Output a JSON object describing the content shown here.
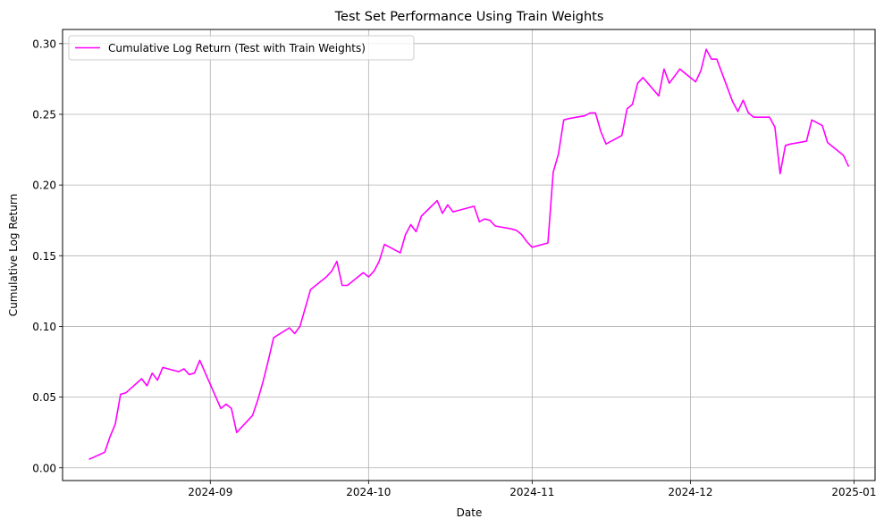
{
  "chart_data": {
    "type": "line",
    "title": "Test Set Performance Using Train Weights",
    "xlabel": "Date",
    "ylabel": "Cumulative Log Return",
    "xlim": [
      "2024-08-04",
      "2025-01-05"
    ],
    "ylim": [
      -0.009,
      0.31
    ],
    "x_ticks": [
      "2024-09-01",
      "2024-10-01",
      "2024-11-01",
      "2024-12-01",
      "2025-01-01"
    ],
    "x_tick_labels": [
      "2024-09",
      "2024-10",
      "2024-11",
      "2024-12",
      "2025-01"
    ],
    "y_ticks": [
      0.0,
      0.05,
      0.1,
      0.15,
      0.2,
      0.25,
      0.3
    ],
    "y_tick_labels": [
      "0.00",
      "0.05",
      "0.10",
      "0.15",
      "0.20",
      "0.25",
      "0.30"
    ],
    "grid": true,
    "legend_position": "top-left",
    "series": [
      {
        "name": "Cumulative Log Return (Test with Train Weights)",
        "color": "#ff00ff",
        "x": [
          "2024-08-09",
          "2024-08-12",
          "2024-08-13",
          "2024-08-14",
          "2024-08-15",
          "2024-08-16",
          "2024-08-19",
          "2024-08-20",
          "2024-08-21",
          "2024-08-22",
          "2024-08-23",
          "2024-08-26",
          "2024-08-27",
          "2024-08-28",
          "2024-08-29",
          "2024-08-30",
          "2024-09-03",
          "2024-09-04",
          "2024-09-05",
          "2024-09-06",
          "2024-09-09",
          "2024-09-10",
          "2024-09-11",
          "2024-09-12",
          "2024-09-13",
          "2024-09-16",
          "2024-09-17",
          "2024-09-18",
          "2024-09-19",
          "2024-09-20",
          "2024-09-23",
          "2024-09-24",
          "2024-09-25",
          "2024-09-26",
          "2024-09-27",
          "2024-09-30",
          "2024-10-01",
          "2024-10-02",
          "2024-10-03",
          "2024-10-04",
          "2024-10-07",
          "2024-10-08",
          "2024-10-09",
          "2024-10-10",
          "2024-10-11",
          "2024-10-14",
          "2024-10-15",
          "2024-10-16",
          "2024-10-17",
          "2024-10-18",
          "2024-10-21",
          "2024-10-22",
          "2024-10-23",
          "2024-10-24",
          "2024-10-25",
          "2024-10-28",
          "2024-10-29",
          "2024-10-30",
          "2024-10-31",
          "2024-11-01",
          "2024-11-04",
          "2024-11-05",
          "2024-11-06",
          "2024-11-07",
          "2024-11-08",
          "2024-11-11",
          "2024-11-12",
          "2024-11-13",
          "2024-11-14",
          "2024-11-15",
          "2024-11-18",
          "2024-11-19",
          "2024-11-20",
          "2024-11-21",
          "2024-11-22",
          "2024-11-25",
          "2024-11-26",
          "2024-11-27",
          "2024-11-29",
          "2024-12-02",
          "2024-12-03",
          "2024-12-04",
          "2024-12-05",
          "2024-12-06",
          "2024-12-09",
          "2024-12-10",
          "2024-12-11",
          "2024-12-12",
          "2024-12-13",
          "2024-12-16",
          "2024-12-17",
          "2024-12-18",
          "2024-12-19",
          "2024-12-20",
          "2024-12-23",
          "2024-12-24",
          "2024-12-26",
          "2024-12-27",
          "2024-12-30",
          "2024-12-31"
        ],
        "y": [
          0.006,
          0.011,
          0.022,
          0.031,
          0.052,
          0.053,
          0.063,
          0.058,
          0.067,
          0.062,
          0.071,
          0.068,
          0.07,
          0.066,
          0.067,
          0.076,
          0.042,
          0.045,
          0.042,
          0.025,
          0.037,
          0.048,
          0.061,
          0.076,
          0.092,
          0.099,
          0.095,
          0.1,
          0.113,
          0.126,
          0.135,
          0.139,
          0.146,
          0.129,
          0.129,
          0.138,
          0.135,
          0.139,
          0.146,
          0.158,
          0.152,
          0.165,
          0.172,
          0.167,
          0.178,
          0.189,
          0.18,
          0.186,
          0.181,
          0.182,
          0.185,
          0.174,
          0.176,
          0.175,
          0.171,
          0.169,
          0.168,
          0.165,
          0.16,
          0.156,
          0.159,
          0.209,
          0.222,
          0.246,
          0.247,
          0.249,
          0.251,
          0.251,
          0.238,
          0.229,
          0.235,
          0.254,
          0.257,
          0.272,
          0.276,
          0.263,
          0.282,
          0.272,
          0.282,
          0.273,
          0.281,
          0.296,
          0.289,
          0.289,
          0.259,
          0.252,
          0.26,
          0.251,
          0.248,
          0.248,
          0.241,
          0.208,
          0.228,
          0.229,
          0.231,
          0.246,
          0.242,
          0.23,
          0.221,
          0.213
        ]
      }
    ]
  }
}
